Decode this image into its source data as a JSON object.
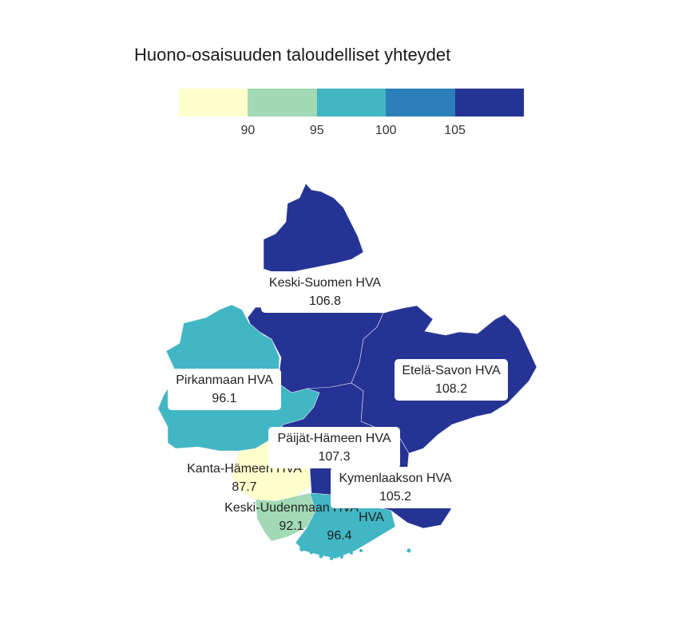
{
  "title": "Huono-osaisuuden taloudelliset yhteydet",
  "legend": {
    "colors": [
      "#ffffcc",
      "#a1dab4",
      "#41b6c4",
      "#2c7fb8",
      "#253494"
    ],
    "ticks": [
      "90",
      "95",
      "100",
      "105"
    ]
  },
  "chart_data": {
    "type": "choropleth",
    "title": "Huono-osaisuuden taloudelliset yhteydet",
    "bins": [
      {
        "max": 90,
        "color": "#ffffcc"
      },
      {
        "min": 90,
        "max": 95,
        "color": "#a1dab4"
      },
      {
        "min": 95,
        "max": 100,
        "color": "#41b6c4"
      },
      {
        "min": 100,
        "max": 105,
        "color": "#2c7fb8"
      },
      {
        "min": 105,
        "color": "#253494"
      }
    ],
    "regions": [
      {
        "name": "Keski-Suomen HVA",
        "value": "106.8"
      },
      {
        "name": "Etelä-Savon HVA",
        "value": "108.2"
      },
      {
        "name": "Pirkanmaan HVA",
        "value": "96.1"
      },
      {
        "name": "Päijät-Hämeen HVA",
        "value": "107.3"
      },
      {
        "name": "Kanta-Hämeen HVA",
        "value": "87.7"
      },
      {
        "name": "Kymenlaakson HVA",
        "value": "105.2"
      },
      {
        "name": "Keski-Uudenmaan HVA",
        "value": "92.1"
      },
      {
        "name": "HVA",
        "value": "96.4"
      }
    ]
  }
}
